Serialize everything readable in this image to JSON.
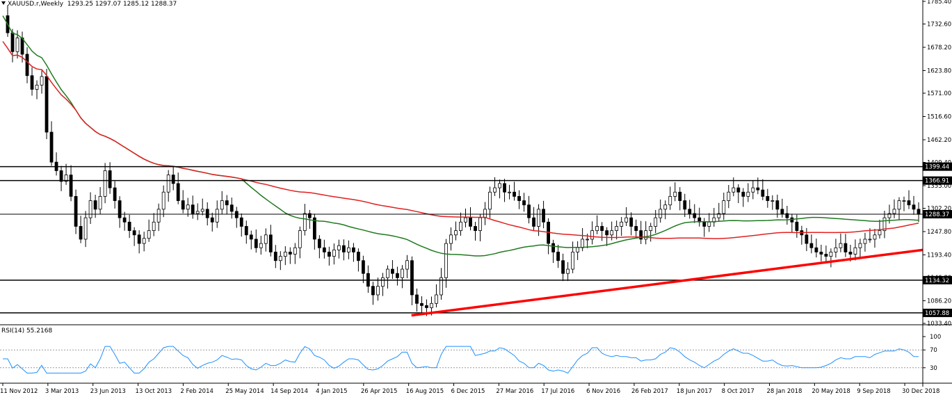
{
  "header": {
    "symbol": "XAUUSD.r,Weekly",
    "ohlc": "1293.25 1297.07 1285.12 1288.37"
  },
  "rsi_header": {
    "label": "RSI(14) 55.2168"
  },
  "chart_data": [
    {
      "type": "candlestick",
      "title": "XAUUSD.r,Weekly",
      "ylim": [
        1033.4,
        1785.4
      ],
      "y_ticks": [
        1033.4,
        1086.2,
        1140.8,
        1193.4,
        1247.8,
        1302.2,
        1355.0,
        1409.4,
        1462.2,
        1516.6,
        1571.0,
        1623.8,
        1678.2,
        1732.6,
        1785.4
      ],
      "y_tick_labels": [
        "1033.40",
        "1086.20",
        "1140.80",
        "1193.40",
        "1247.80",
        "1302.20",
        "1355.00",
        "1409.40",
        "1462.20",
        "1516.60",
        "1571.00",
        "1623.80",
        "1678.20",
        "1732.60",
        "1785.40"
      ],
      "x_labels": [
        "11 Nov 2012",
        "3 Mar 2013",
        "23 Jun 2013",
        "13 Oct 2013",
        "2 Feb 2014",
        "25 May 2014",
        "14 Sep 2014",
        "4 Jan 2015",
        "26 Apr 2015",
        "16 Aug 2015",
        "6 Dec 2015",
        "27 Mar 2016",
        "17 Jul 2016",
        "6 Nov 2016",
        "26 Feb 2017",
        "18 Jun 2017",
        "8 Oct 2017",
        "28 Jan 2018",
        "20 May 2018",
        "9 Sep 2018",
        "30 Dec 2018"
      ],
      "price_series": [
        1752,
        1712,
        1668,
        1700,
        1662,
        1612,
        1580,
        1590,
        1610,
        1480,
        1410,
        1390,
        1365,
        1380,
        1330,
        1260,
        1230,
        1280,
        1320,
        1300,
        1330,
        1390,
        1350,
        1320,
        1280,
        1270,
        1250,
        1240,
        1220,
        1232,
        1250,
        1270,
        1300,
        1340,
        1380,
        1360,
        1320,
        1300,
        1310,
        1290,
        1295,
        1300,
        1280,
        1270,
        1300,
        1320,
        1310,
        1295,
        1280,
        1260,
        1240,
        1230,
        1210,
        1220,
        1240,
        1200,
        1180,
        1190,
        1200,
        1195,
        1210,
        1250,
        1290,
        1280,
        1230,
        1210,
        1200,
        1190,
        1205,
        1215,
        1200,
        1210,
        1200,
        1180,
        1150,
        1120,
        1100,
        1120,
        1140,
        1160,
        1150,
        1140,
        1160,
        1180,
        1100,
        1080,
        1075,
        1070,
        1080,
        1100,
        1140,
        1220,
        1240,
        1250,
        1270,
        1280,
        1260,
        1250,
        1280,
        1300,
        1340,
        1350,
        1360,
        1340,
        1340,
        1330,
        1320,
        1310,
        1280,
        1260,
        1300,
        1270,
        1220,
        1200,
        1180,
        1150,
        1160,
        1200,
        1210,
        1230,
        1230,
        1250,
        1260,
        1250,
        1240,
        1250,
        1260,
        1270,
        1280,
        1260,
        1250,
        1230,
        1250,
        1260,
        1280,
        1300,
        1310,
        1330,
        1340,
        1320,
        1300,
        1290,
        1280,
        1270,
        1260,
        1270,
        1280,
        1290,
        1320,
        1340,
        1350,
        1340,
        1330,
        1340,
        1350,
        1345,
        1330,
        1320,
        1320,
        1300,
        1290,
        1280,
        1270,
        1250,
        1240,
        1220,
        1210,
        1200,
        1195,
        1190,
        1200,
        1210,
        1220,
        1200,
        1195,
        1210,
        1220,
        1230,
        1230,
        1240,
        1250,
        1280,
        1290,
        1300,
        1320,
        1320,
        1310,
        1300,
        1288
      ],
      "series": [
        {
          "name": "",
          "color": "#1f7a1f"
        },
        {
          "name": "",
          "color": "#e02020"
        }
      ],
      "horizontal_levels": [
        {
          "value": 1399.44,
          "label": "1399.44"
        },
        {
          "value": 1366.91,
          "label": "1366.91"
        },
        {
          "value": 1288.37,
          "label": "1288.37"
        },
        {
          "value": 1134.32,
          "label": "1134.32"
        },
        {
          "value": 1057.88,
          "label": "1057.88"
        }
      ],
      "trendline": {
        "from": [
          "16 Aug 2015",
          1052
        ],
        "to": [
          "30 Dec 2018",
          1205
        ],
        "color": "#ff0000"
      }
    },
    {
      "type": "line",
      "title": "RSI(14) 55.2168",
      "ylim": [
        0,
        100
      ],
      "y_ticks": [
        30,
        70,
        100
      ],
      "y_tick_labels": [
        "30",
        "70",
        "100"
      ],
      "levels": [
        30,
        70
      ],
      "color": "#1e90ff",
      "last_value": 55.2168
    }
  ],
  "colors": {
    "up": "#000000",
    "down": "#000000",
    "grid_line": "#000000",
    "level_label_bg": "#000000"
  }
}
